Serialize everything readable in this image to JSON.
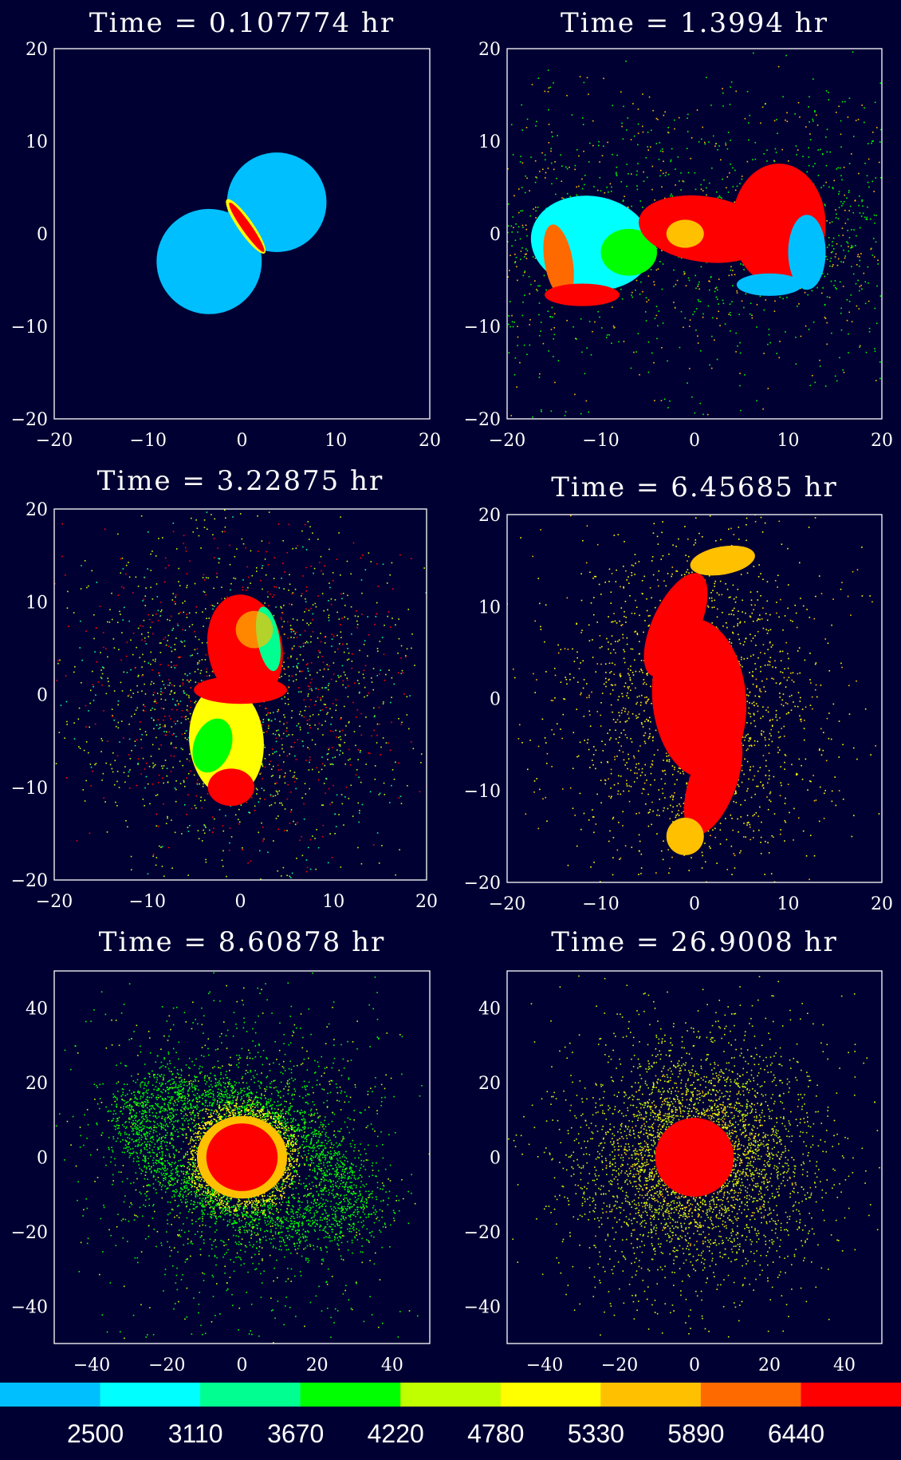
{
  "chart_data": [
    {
      "type": "scatter",
      "title": "Time = 0.107774 hr",
      "xlim": [
        -20,
        20
      ],
      "ylim": [
        -20,
        20
      ],
      "xticks": [
        "-20",
        "-10",
        "0",
        "10",
        "20"
      ],
      "yticks": [
        "-20",
        "-10",
        "0",
        "10",
        "20"
      ]
    },
    {
      "type": "scatter",
      "title": "Time = 1.3994 hr",
      "xlim": [
        -20,
        20
      ],
      "ylim": [
        -20,
        20
      ],
      "xticks": [
        "-20",
        "-10",
        "0",
        "10",
        "20"
      ],
      "yticks": [
        "-20",
        "-10",
        "0",
        "10",
        "20"
      ]
    },
    {
      "type": "scatter",
      "title": "Time = 3.22875 hr",
      "xlim": [
        -20,
        20
      ],
      "ylim": [
        -20,
        20
      ],
      "xticks": [
        "-20",
        "-10",
        "0",
        "10",
        "20"
      ],
      "yticks": [
        "-20",
        "-10",
        "0",
        "10",
        "20"
      ]
    },
    {
      "type": "scatter",
      "title": "Time = 6.45685 hr",
      "xlim": [
        -20,
        20
      ],
      "ylim": [
        -20,
        20
      ],
      "xticks": [
        "-20",
        "-10",
        "0",
        "10",
        "20"
      ],
      "yticks": [
        "-20",
        "-10",
        "0",
        "10",
        "20"
      ]
    },
    {
      "type": "scatter",
      "title": "Time = 8.60878 hr",
      "xlim": [
        -50,
        50
      ],
      "ylim": [
        -50,
        50
      ],
      "xticks": [
        "-40",
        "-20",
        "0",
        "20",
        "40"
      ],
      "yticks": [
        "-40",
        "-20",
        "0",
        "20",
        "40"
      ]
    },
    {
      "type": "scatter",
      "title": "Time = 26.9008 hr",
      "xlim": [
        -50,
        50
      ],
      "ylim": [
        -50,
        50
      ],
      "xticks": [
        "-40",
        "-20",
        "0",
        "20",
        "40"
      ],
      "yticks": [
        "-40",
        "-20",
        "0",
        "20",
        "40"
      ]
    }
  ],
  "colorbar": {
    "colors": [
      "#00bfff",
      "#00ffff",
      "#00ff90",
      "#00ff00",
      "#c0ff00",
      "#ffff00",
      "#ffc000",
      "#ff6a00",
      "#ff0000"
    ],
    "labels": [
      "2500",
      "3110",
      "3670",
      "4220",
      "4780",
      "5330",
      "5890",
      "6440"
    ]
  },
  "background": "#000033"
}
